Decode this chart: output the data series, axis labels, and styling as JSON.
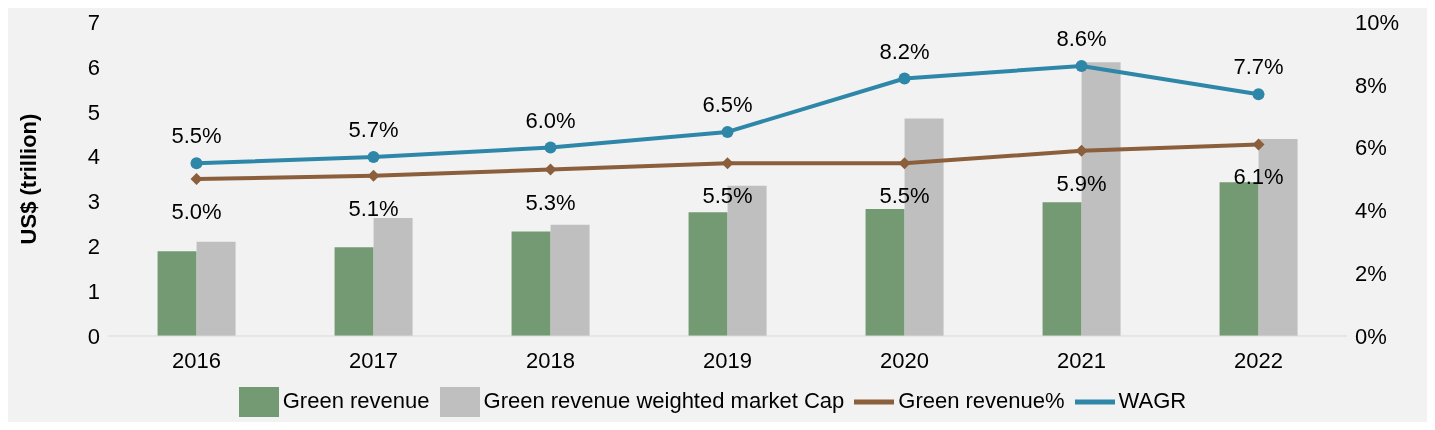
{
  "chart_data": {
    "type": "bar",
    "ylabel": "US$ (trillion)",
    "categories": [
      "2016",
      "2017",
      "2018",
      "2019",
      "2020",
      "2021",
      "2022"
    ],
    "series": [
      {
        "name": "Green revenue",
        "color": "#739a73",
        "values": [
          1.89,
          1.98,
          2.33,
          2.76,
          2.83,
          2.98,
          3.43
        ]
      },
      {
        "name": "Green revenue weighted market Cap",
        "color": "#bfbfbf",
        "values": [
          2.1,
          2.63,
          2.48,
          3.35,
          4.85,
          6.1,
          4.39
        ]
      },
      {
        "name": "WAGR",
        "type": "line",
        "axis": "y2",
        "color": "#2e87a8",
        "marker": "circle",
        "values": [
          5.5,
          5.7,
          6.0,
          6.5,
          8.2,
          8.6,
          7.7
        ],
        "value_labels": [
          "5.5%",
          "5.7%",
          "6.0%",
          "6.5%",
          "8.2%",
          "8.6%",
          "7.7%"
        ]
      },
      {
        "name": "Green revenue%",
        "type": "line",
        "axis": "y2",
        "color": "#8b5e3c",
        "marker": "diamond",
        "values": [
          5.0,
          5.1,
          5.3,
          5.5,
          5.5,
          5.9,
          6.1
        ],
        "value_labels": [
          "5.0%",
          "5.1%",
          "5.3%",
          "5.5%",
          "5.5%",
          "5.9%",
          "6.1%"
        ]
      }
    ],
    "ylim": [
      0,
      7
    ],
    "yticks": [
      0,
      1,
      2,
      3,
      4,
      5,
      6,
      7
    ],
    "y2lim": [
      0,
      10
    ],
    "y2ticks": [
      {
        "value": 0,
        "label": "0%"
      },
      {
        "value": 2,
        "label": "2%"
      },
      {
        "value": 4,
        "label": "4%"
      },
      {
        "value": 6,
        "label": "6%"
      },
      {
        "value": 8,
        "label": "8%"
      },
      {
        "value": 10,
        "label": "10%"
      }
    ],
    "legend": "bottom",
    "grid": false
  }
}
